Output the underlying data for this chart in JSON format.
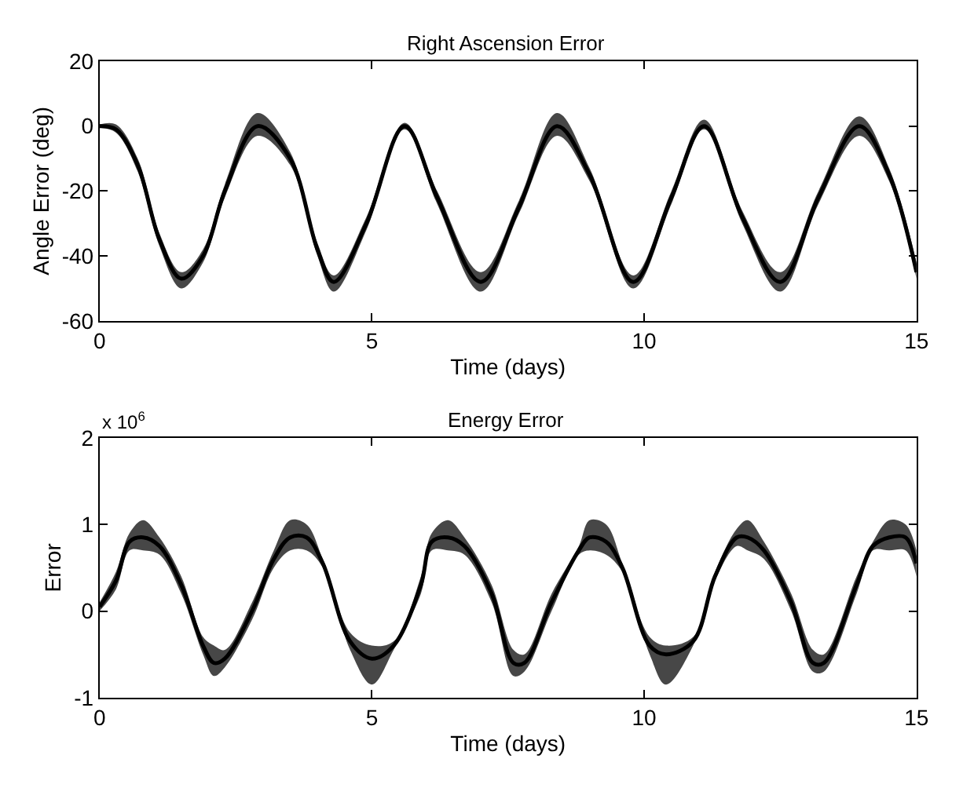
{
  "chart_data": [
    {
      "type": "line",
      "title": "Right Ascension Error",
      "xlabel": "Time (days)",
      "ylabel": "Angle Error (deg)",
      "xlim": [
        0,
        15
      ],
      "xticks": [
        0,
        5,
        10,
        15
      ],
      "ylim": [
        -60,
        20
      ],
      "yticks": [
        -60,
        -40,
        -20,
        0,
        20
      ],
      "x": [
        0,
        0.3,
        0.7,
        1.1,
        1.5,
        1.9,
        2.3,
        2.9,
        3.5,
        4.0,
        4.3,
        4.9,
        5.6,
        6.2,
        7.0,
        7.7,
        8.4,
        9.0,
        9.8,
        10.5,
        11.1,
        11.8,
        12.5,
        13.2,
        13.95,
        14.5,
        15
      ],
      "series": [
        {
          "color": "#000000",
          "values": [
            0,
            -1,
            -12,
            -35,
            -47,
            -40,
            -20,
            0,
            -10,
            -38,
            -48,
            -30,
            0,
            -22,
            -48,
            -25,
            0,
            -15,
            -48,
            -22,
            0,
            -28,
            -48,
            -22,
            0,
            -15,
            -45
          ],
          "lower": [
            -0.5,
            -2,
            -14,
            -37,
            -50,
            -42,
            -22,
            -3,
            -12,
            -40,
            -51,
            -32,
            -1,
            -24,
            -51,
            -27,
            -3,
            -17,
            -50,
            -24,
            -1,
            -30,
            -51,
            -24,
            -3,
            -17,
            -47
          ],
          "upper": [
            0.5,
            0.5,
            -10,
            -33,
            -45,
            -38,
            -18,
            4,
            -8,
            -36,
            -46,
            -28,
            1,
            -20,
            -45,
            -23,
            4,
            -13,
            -46,
            -20,
            2,
            -26,
            -45,
            -20,
            3,
            -13,
            -42
          ]
        }
      ]
    },
    {
      "type": "line",
      "title": "Energy Error",
      "xlabel": "Time (days)",
      "ylabel": "Error",
      "annotations": [
        "x 10$^{6}$"
      ],
      "xlim": [
        0,
        15
      ],
      "xticks": [
        0,
        5,
        10,
        15
      ],
      "ylim": [
        -1,
        2
      ],
      "yticks": [
        -1,
        0,
        1,
        2
      ],
      "x": [
        0,
        0.3,
        0.55,
        0.8,
        1.1,
        1.5,
        1.9,
        2.1,
        2.3,
        2.8,
        3.2,
        3.5,
        3.8,
        4.1,
        4.6,
        5.0,
        5.4,
        5.9,
        6.1,
        6.4,
        6.7,
        7.2,
        7.6,
        7.8,
        8.3,
        8.8,
        9.0,
        9.3,
        9.6,
        10.1,
        10.4,
        10.9,
        11.3,
        11.7,
        11.9,
        12.2,
        12.7,
        13.1,
        13.3,
        13.9,
        14.2,
        14.5,
        14.8,
        15
      ],
      "series": [
        {
          "color": "#000000",
          "values": [
            0.05,
            0.35,
            0.8,
            0.85,
            0.75,
            0.3,
            -0.4,
            -0.6,
            -0.55,
            0,
            0.6,
            0.85,
            0.85,
            0.55,
            -0.35,
            -0.55,
            -0.4,
            0.3,
            0.8,
            0.85,
            0.75,
            0.2,
            -0.6,
            -0.6,
            0.1,
            0.7,
            0.85,
            0.8,
            0.5,
            -0.4,
            -0.5,
            -0.35,
            0.4,
            0.85,
            0.85,
            0.7,
            0.1,
            -0.6,
            -0.6,
            0.3,
            0.75,
            0.85,
            0.85,
            0.55
          ],
          "lower": [
            0,
            0.25,
            0.7,
            0.7,
            0.65,
            0.2,
            -0.5,
            -0.75,
            -0.65,
            -0.1,
            0.5,
            0.7,
            0.7,
            0.5,
            -0.45,
            -0.85,
            -0.45,
            0.2,
            0.7,
            0.7,
            0.65,
            0.1,
            -0.75,
            -0.7,
            0,
            0.65,
            0.7,
            0.65,
            0.45,
            -0.5,
            -0.85,
            -0.4,
            0.35,
            0.75,
            0.7,
            0.6,
            0,
            -0.7,
            -0.7,
            0.2,
            0.7,
            0.7,
            0.7,
            0.4
          ],
          "upper": [
            0.1,
            0.45,
            0.9,
            1.05,
            0.85,
            0.4,
            -0.3,
            -0.4,
            -0.45,
            0.1,
            0.7,
            1.05,
            1.0,
            0.6,
            -0.25,
            -0.4,
            -0.35,
            0.4,
            0.9,
            1.05,
            0.85,
            0.3,
            -0.45,
            -0.5,
            0.2,
            0.75,
            1.05,
            1.0,
            0.55,
            -0.3,
            -0.4,
            -0.3,
            0.45,
            0.95,
            1.05,
            0.8,
            0.2,
            -0.45,
            -0.5,
            0.4,
            0.8,
            1.05,
            1.0,
            0.7
          ]
        }
      ]
    }
  ]
}
